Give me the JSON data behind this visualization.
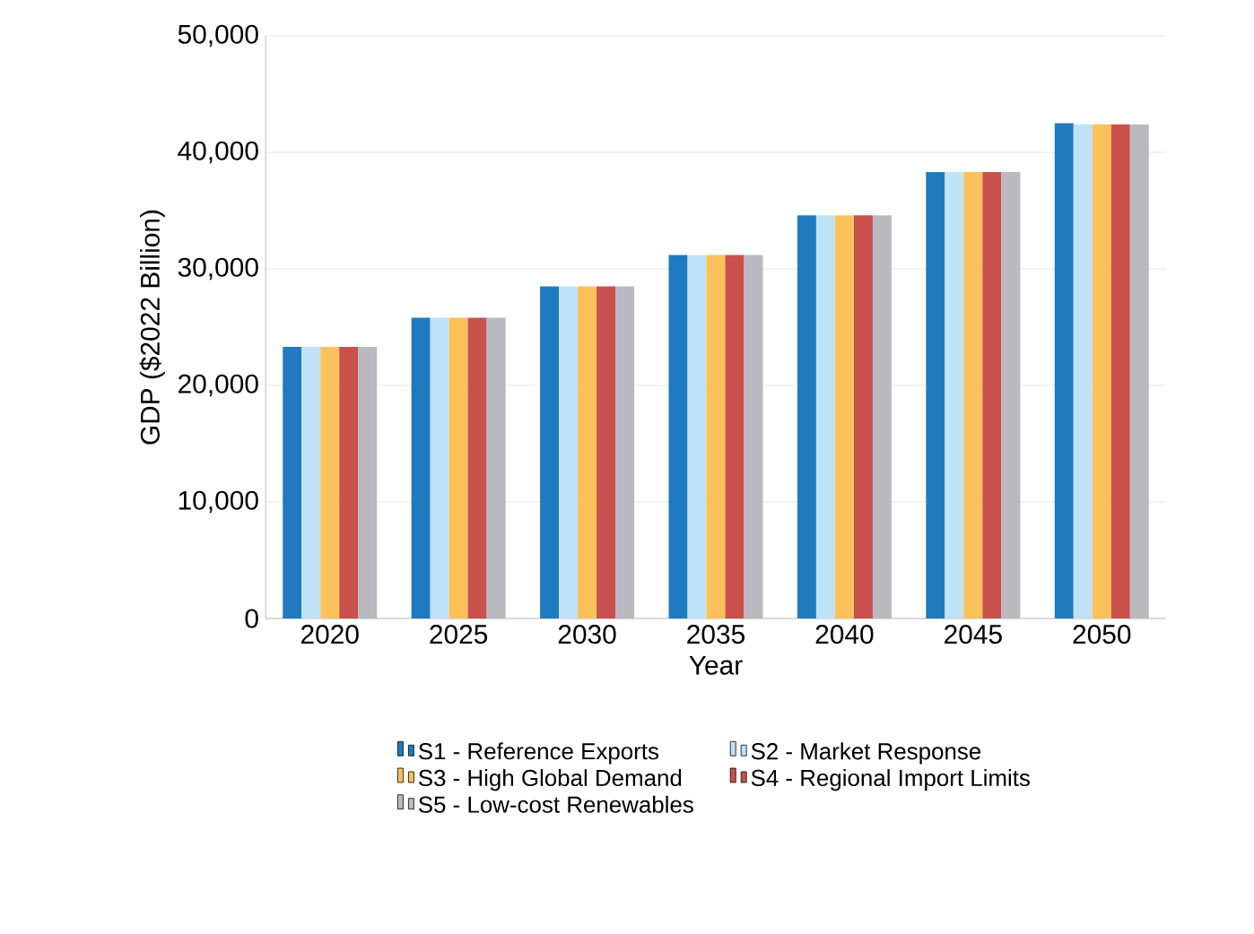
{
  "chart_data": {
    "type": "bar",
    "xlabel": "Year",
    "ylabel": "GDP ($2022 Billion)",
    "categories": [
      "2020",
      "2025",
      "2030",
      "2035",
      "2040",
      "2045",
      "2050"
    ],
    "series": [
      {
        "name": "S1 - Reference Exports",
        "color": "#1f7ac0",
        "values": [
          23300,
          25800,
          28500,
          31200,
          34600,
          38300,
          42500
        ]
      },
      {
        "name": "S2 - Market Response",
        "color": "#bfe2f7",
        "values": [
          23300,
          25800,
          28500,
          31200,
          34600,
          38300,
          42400
        ]
      },
      {
        "name": "S3 - High Global Demand",
        "color": "#fbc15b",
        "values": [
          23300,
          25800,
          28500,
          31200,
          34600,
          38300,
          42400
        ]
      },
      {
        "name": "S4 - Regional Import Limits",
        "color": "#c9504d",
        "values": [
          23300,
          25800,
          28500,
          31200,
          34600,
          38300,
          42400
        ]
      },
      {
        "name": "S5 - Low-cost Renewables",
        "color": "#b9b9bf",
        "values": [
          23300,
          25800,
          28500,
          31200,
          34600,
          38300,
          42400
        ]
      }
    ],
    "ylim": [
      0,
      50000
    ],
    "yticks": [
      {
        "value": 0,
        "label": "0"
      },
      {
        "value": 10000,
        "label": "10,000"
      },
      {
        "value": 20000,
        "label": "20,000"
      },
      {
        "value": 30000,
        "label": "30,000"
      },
      {
        "value": 40000,
        "label": "40,000"
      },
      {
        "value": 50000,
        "label": "50,000"
      }
    ],
    "grid": "y",
    "legend": "bottom"
  }
}
